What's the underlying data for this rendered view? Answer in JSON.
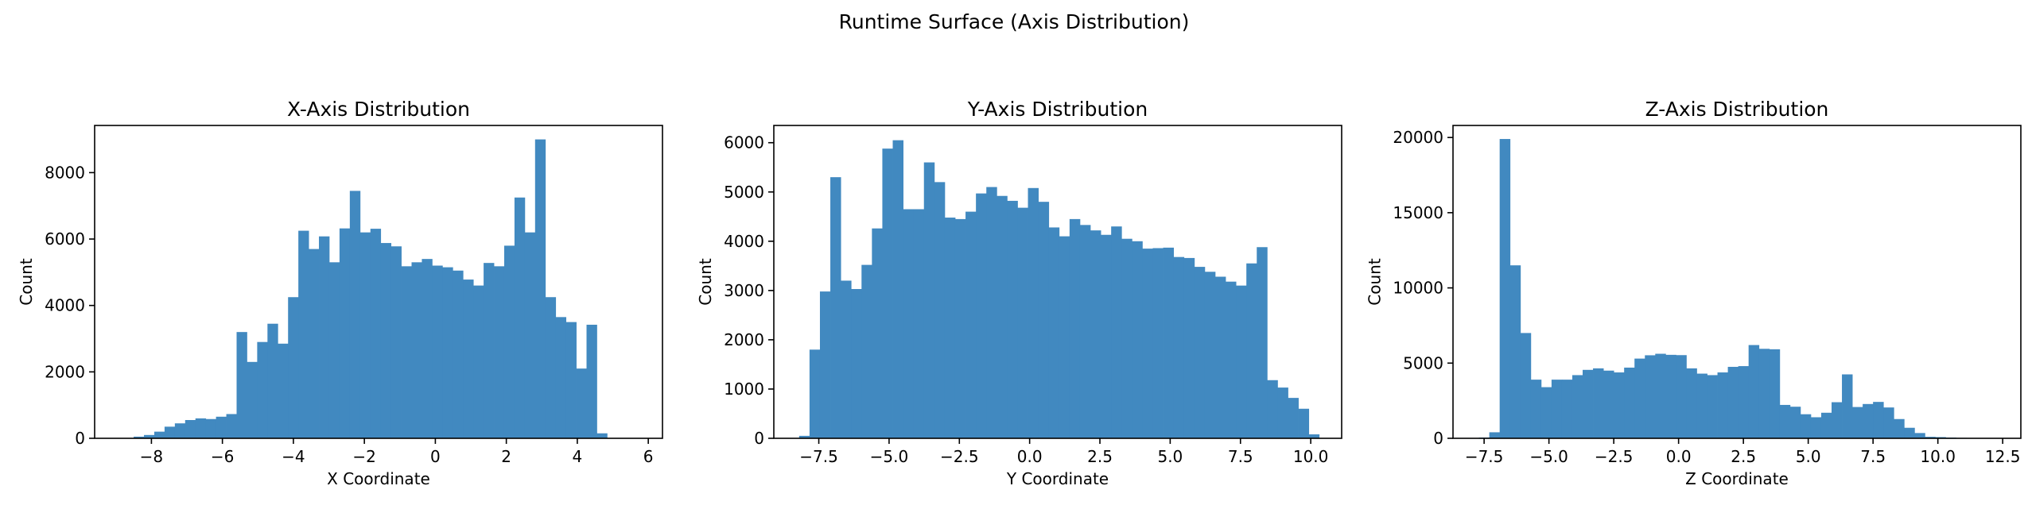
{
  "figure": {
    "suptitle": "Runtime Surface (Axis Distribution)",
    "bar_color": "#4189c0",
    "background": "#ffffff"
  },
  "chart_data": [
    {
      "type": "bar",
      "title": "X-Axis Distribution",
      "xlabel": "X Coordinate",
      "ylabel": "Count",
      "xlim": [
        -9.6,
        6.4
      ],
      "ylim": [
        0,
        9420
      ],
      "xticks": [
        -8,
        -6,
        -4,
        -2,
        0,
        2,
        4,
        6
      ],
      "xtick_labels": [
        "−8",
        "−6",
        "−4",
        "−2",
        "0",
        "2",
        "4",
        "6"
      ],
      "yticks": [
        0,
        2000,
        4000,
        6000,
        8000
      ],
      "ytick_labels": [
        "0",
        "2000",
        "4000",
        "6000",
        "8000"
      ],
      "grid": false,
      "bin_edges": [
        -8.5,
        -8.21,
        -7.92,
        -7.63,
        -7.34,
        -7.05,
        -6.76,
        -6.47,
        -6.18,
        -5.89,
        -5.6,
        -5.31,
        -5.02,
        -4.73,
        -4.44,
        -4.15,
        -3.86,
        -3.57,
        -3.28,
        -2.99,
        -2.7,
        -2.41,
        -2.12,
        -1.83,
        -1.54,
        -1.25,
        -0.96,
        -0.67,
        -0.38,
        -0.09,
        0.2,
        0.49,
        0.78,
        1.07,
        1.36,
        1.65,
        1.94,
        2.23,
        2.52,
        2.81,
        3.1,
        3.39,
        3.68,
        3.97,
        4.26,
        4.55,
        4.84,
        5.13,
        5.42,
        5.71,
        6.0
      ],
      "values": [
        50,
        100,
        200,
        350,
        450,
        550,
        600,
        580,
        650,
        730,
        3200,
        2300,
        2900,
        3450,
        2850,
        4250,
        6250,
        5700,
        6080,
        5300,
        6320,
        7450,
        6200,
        6310,
        5880,
        5780,
        5180,
        5300,
        5400,
        5200,
        5150,
        5050,
        4780,
        4600,
        5280,
        5180,
        5800,
        7250,
        6200,
        9000,
        4250,
        3650,
        3500,
        2100,
        3420,
        150,
        0,
        0,
        0,
        0
      ]
    },
    {
      "type": "bar",
      "title": "Y-Axis Distribution",
      "xlabel": "Y Coordinate",
      "ylabel": "Count",
      "xlim": [
        -9.1,
        11.1
      ],
      "ylim": [
        0,
        6350
      ],
      "xticks": [
        -7.5,
        -5.0,
        -2.5,
        0.0,
        2.5,
        5.0,
        7.5,
        10.0
      ],
      "xtick_labels": [
        "−7.5",
        "−5.0",
        "−2.5",
        "0.0",
        "2.5",
        "5.0",
        "7.5",
        "10.0"
      ],
      "yticks": [
        0,
        1000,
        2000,
        3000,
        4000,
        5000,
        6000
      ],
      "ytick_labels": [
        "0",
        "1000",
        "2000",
        "3000",
        "4000",
        "5000",
        "6000"
      ],
      "grid": false,
      "bin_edges": [
        -8.2,
        -7.83,
        -7.46,
        -7.09,
        -6.72,
        -6.35,
        -5.98,
        -5.61,
        -5.24,
        -4.87,
        -4.5,
        -4.13,
        -3.76,
        -3.39,
        -3.02,
        -2.65,
        -2.28,
        -1.91,
        -1.54,
        -1.17,
        -0.8,
        -0.43,
        -0.06,
        0.31,
        0.68,
        1.05,
        1.42,
        1.79,
        2.16,
        2.53,
        2.9,
        3.27,
        3.64,
        4.01,
        4.38,
        4.75,
        5.12,
        5.49,
        5.86,
        6.23,
        6.6,
        6.97,
        7.34,
        7.71,
        8.08,
        8.45,
        8.82,
        9.19,
        9.56,
        9.93,
        10.3
      ],
      "values": [
        50,
        1800,
        2980,
        5300,
        3200,
        3030,
        3520,
        4260,
        5880,
        6050,
        4650,
        4650,
        5600,
        5200,
        4480,
        4450,
        4600,
        4970,
        5100,
        4920,
        4820,
        4680,
        5080,
        4800,
        4280,
        4100,
        4450,
        4330,
        4220,
        4130,
        4300,
        4050,
        4000,
        3850,
        3860,
        3870,
        3680,
        3660,
        3480,
        3380,
        3280,
        3180,
        3100,
        3550,
        3880,
        1180,
        1030,
        820,
        600,
        80
      ]
    },
    {
      "type": "bar",
      "title": "Z-Axis Distribution",
      "xlabel": "Z Coordinate",
      "ylabel": "Count",
      "xlim": [
        -8.7,
        13.2
      ],
      "ylim": [
        0,
        20800
      ],
      "xticks": [
        -7.5,
        -5.0,
        -2.5,
        0.0,
        2.5,
        5.0,
        7.5,
        10.0,
        12.5
      ],
      "xtick_labels": [
        "−7.5",
        "−5.0",
        "−2.5",
        "0.0",
        "2.5",
        "5.0",
        "7.5",
        "10.0",
        "12.5"
      ],
      "yticks": [
        0,
        5000,
        10000,
        15000,
        20000
      ],
      "ytick_labels": [
        "0",
        "5000",
        "10000",
        "15000",
        "20000"
      ],
      "grid": false,
      "bin_edges": [
        -7.7,
        -7.3,
        -6.9,
        -6.5,
        -6.1,
        -5.7,
        -5.3,
        -4.9,
        -4.5,
        -4.1,
        -3.7,
        -3.3,
        -2.9,
        -2.5,
        -2.1,
        -1.7,
        -1.3,
        -0.9,
        -0.5,
        -0.1,
        0.3,
        0.7,
        1.1,
        1.5,
        1.9,
        2.3,
        2.7,
        3.1,
        3.5,
        3.9,
        4.3,
        4.7,
        5.1,
        5.5,
        5.9,
        6.3,
        6.7,
        7.1,
        7.5,
        7.9,
        8.3,
        8.7,
        9.1,
        9.5,
        9.9,
        10.3,
        10.7,
        11.1,
        11.5,
        11.9,
        12.3
      ],
      "values": [
        50,
        400,
        19900,
        11500,
        7000,
        3900,
        3400,
        3900,
        3900,
        4200,
        4550,
        4650,
        4500,
        4380,
        4700,
        5300,
        5520,
        5620,
        5550,
        5530,
        4650,
        4300,
        4200,
        4380,
        4750,
        4800,
        6200,
        5950,
        5920,
        2220,
        2100,
        1600,
        1400,
        1700,
        2400,
        4250,
        2080,
        2280,
        2420,
        2050,
        1280,
        700,
        350,
        100,
        80,
        50,
        30,
        20,
        10,
        0
      ]
    }
  ]
}
